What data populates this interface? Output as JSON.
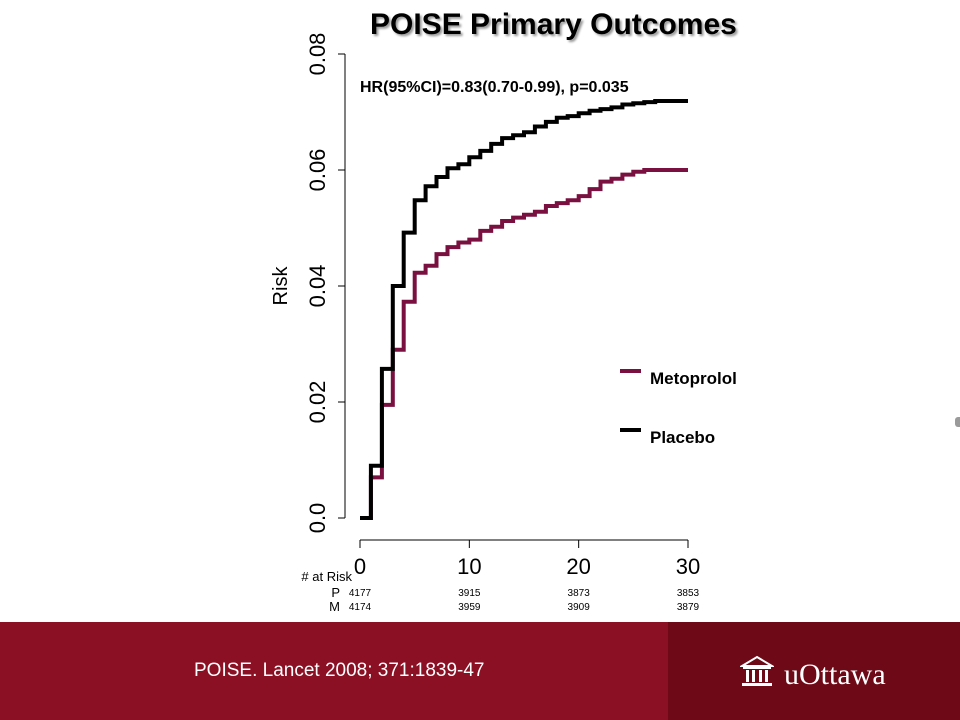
{
  "title": "POISE Primary Outcomes",
  "annotation": "HR(95%CI)=0.83(0.70-0.99), p=0.035",
  "citation": "POISE. Lancet 2008; 371:1839-47",
  "logo_text": "uOttawa",
  "logo_icon": "university-building-icon",
  "colors": {
    "placebo": "#000000",
    "metoprolol": "#7a1040",
    "footer": "#8b1024",
    "footer_dark": "#6e0a17"
  },
  "at_risk": {
    "header": "# at Risk",
    "rows": [
      {
        "label": "P",
        "values": [
          "4177",
          "3915",
          "3873",
          "3853"
        ]
      },
      {
        "label": "M",
        "values": [
          "4174",
          "3959",
          "3909",
          "3879"
        ]
      }
    ]
  },
  "chart_data": {
    "type": "line",
    "step": true,
    "title": "POISE Primary Outcomes",
    "ylabel": "Risk",
    "xlabel": "",
    "xlim": [
      0,
      30
    ],
    "ylim": [
      0,
      0.08
    ],
    "xticks": [
      0,
      10,
      20,
      30
    ],
    "xtick_labels": [
      "0",
      "10",
      "20",
      "30"
    ],
    "yticks": [
      0,
      0.02,
      0.04,
      0.06,
      0.08
    ],
    "ytick_labels": [
      "0.0",
      "0.02",
      "0.04",
      "0.06",
      "0.08"
    ],
    "legend_position": "right",
    "series": [
      {
        "name": "Metoprolol",
        "color": "#7a1040",
        "points": [
          [
            0,
            0
          ],
          [
            1,
            0
          ],
          [
            1,
            0.007
          ],
          [
            2,
            0.007
          ],
          [
            2,
            0.0195
          ],
          [
            3,
            0.0195
          ],
          [
            3,
            0.029
          ],
          [
            4,
            0.029
          ],
          [
            4,
            0.0373
          ],
          [
            5,
            0.0373
          ],
          [
            5,
            0.0423
          ],
          [
            6,
            0.0423
          ],
          [
            6,
            0.0435
          ],
          [
            7,
            0.0435
          ],
          [
            7,
            0.0455
          ],
          [
            8,
            0.0455
          ],
          [
            8,
            0.0467
          ],
          [
            9,
            0.0467
          ],
          [
            9,
            0.0475
          ],
          [
            10,
            0.0475
          ],
          [
            10,
            0.048
          ],
          [
            11,
            0.048
          ],
          [
            11,
            0.0495
          ],
          [
            12,
            0.0495
          ],
          [
            12,
            0.0502
          ],
          [
            13,
            0.0502
          ],
          [
            13,
            0.0512
          ],
          [
            14,
            0.0512
          ],
          [
            14,
            0.0518
          ],
          [
            15,
            0.0518
          ],
          [
            15,
            0.0523
          ],
          [
            16,
            0.0523
          ],
          [
            16,
            0.0528
          ],
          [
            17,
            0.0528
          ],
          [
            17,
            0.0538
          ],
          [
            18,
            0.0538
          ],
          [
            18,
            0.0543
          ],
          [
            19,
            0.0543
          ],
          [
            19,
            0.0548
          ],
          [
            20,
            0.0548
          ],
          [
            20,
            0.0555
          ],
          [
            21,
            0.0555
          ],
          [
            21,
            0.0567
          ],
          [
            22,
            0.0567
          ],
          [
            22,
            0.058
          ],
          [
            23,
            0.058
          ],
          [
            23,
            0.0585
          ],
          [
            24,
            0.0585
          ],
          [
            24,
            0.0592
          ],
          [
            25,
            0.0592
          ],
          [
            25,
            0.0597
          ],
          [
            26,
            0.0597
          ],
          [
            26,
            0.06
          ],
          [
            30,
            0.06
          ]
        ]
      },
      {
        "name": "Placebo",
        "color": "#000000",
        "points": [
          [
            0,
            0
          ],
          [
            1,
            0
          ],
          [
            1,
            0.009
          ],
          [
            2,
            0.009
          ],
          [
            2,
            0.0257
          ],
          [
            3,
            0.0257
          ],
          [
            3,
            0.04
          ],
          [
            4,
            0.04
          ],
          [
            4,
            0.0492
          ],
          [
            5,
            0.0492
          ],
          [
            5,
            0.0548
          ],
          [
            6,
            0.0548
          ],
          [
            6,
            0.0572
          ],
          [
            7,
            0.0572
          ],
          [
            7,
            0.0588
          ],
          [
            8,
            0.0588
          ],
          [
            8,
            0.0603
          ],
          [
            9,
            0.0603
          ],
          [
            9,
            0.061
          ],
          [
            10,
            0.061
          ],
          [
            10,
            0.0622
          ],
          [
            11,
            0.0622
          ],
          [
            11,
            0.0633
          ],
          [
            12,
            0.0633
          ],
          [
            12,
            0.0645
          ],
          [
            13,
            0.0645
          ],
          [
            13,
            0.0655
          ],
          [
            14,
            0.0655
          ],
          [
            14,
            0.066
          ],
          [
            15,
            0.066
          ],
          [
            15,
            0.0665
          ],
          [
            16,
            0.0665
          ],
          [
            16,
            0.0675
          ],
          [
            17,
            0.0675
          ],
          [
            17,
            0.0683
          ],
          [
            18,
            0.0683
          ],
          [
            18,
            0.069
          ],
          [
            19,
            0.069
          ],
          [
            19,
            0.0693
          ],
          [
            20,
            0.0693
          ],
          [
            20,
            0.0698
          ],
          [
            21,
            0.0698
          ],
          [
            21,
            0.0702
          ],
          [
            22,
            0.0702
          ],
          [
            22,
            0.0705
          ],
          [
            23,
            0.0705
          ],
          [
            23,
            0.0708
          ],
          [
            24,
            0.0708
          ],
          [
            24,
            0.0713
          ],
          [
            25,
            0.0713
          ],
          [
            25,
            0.0715
          ],
          [
            26,
            0.0715
          ],
          [
            26,
            0.0717
          ],
          [
            27,
            0.0717
          ],
          [
            27,
            0.0719
          ],
          [
            30,
            0.0719
          ]
        ]
      }
    ]
  }
}
